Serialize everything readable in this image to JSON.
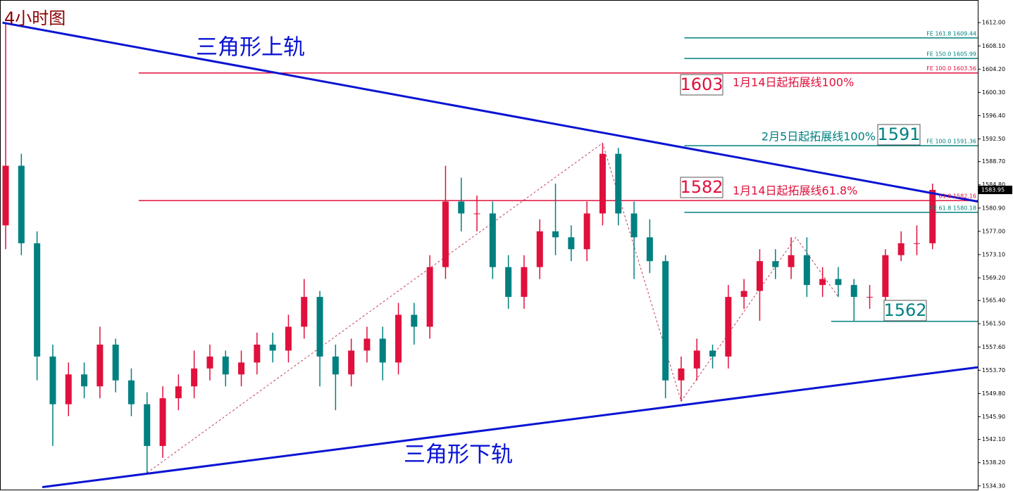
{
  "chart_data": {
    "type": "candlestick",
    "title": "4小时图",
    "open": [
      1578,
      1588,
      1575,
      1556,
      1548,
      1553,
      1551,
      1558,
      1552,
      1548,
      1541,
      1549,
      1551,
      1554,
      1556,
      1553,
      1555,
      1558,
      1557,
      1561,
      1566,
      1556,
      1553,
      1557,
      1559,
      1555,
      1563,
      1561,
      1571,
      1582,
      1580,
      1580,
      1571,
      1566,
      1571,
      1577,
      1576,
      1574,
      1580,
      1590,
      1580,
      1576,
      1572,
      1552,
      1554,
      1557,
      1556,
      1566,
      1567,
      1572,
      1571,
      1573,
      1568,
      1569,
      1568,
      1566,
      1566,
      1573,
      1575,
      1575
    ],
    "high": [
      1612,
      1590,
      1577,
      1558,
      1555,
      1555,
      1561,
      1559,
      1554,
      1550,
      1551,
      1553,
      1557,
      1558,
      1557,
      1557,
      1560,
      1560,
      1563,
      1569,
      1567,
      1558,
      1559,
      1561,
      1561,
      1565,
      1565,
      1573,
      1588,
      1586,
      1583,
      1582,
      1573,
      1573,
      1579,
      1585,
      1578,
      1582,
      1591.8,
      1591,
      1582,
      1579,
      1573,
      1556,
      1559,
      1558,
      1568,
      1569,
      1574,
      1574,
      1576,
      1576,
      1571,
      1571,
      1569,
      1568,
      1574,
      1577,
      1578,
      1585
    ],
    "low": [
      1574,
      1573,
      1552,
      1541,
      1546,
      1549,
      1549,
      1550,
      1546,
      1536.5,
      1539,
      1547,
      1549,
      1552,
      1551,
      1551,
      1553,
      1555,
      1555,
      1559,
      1551,
      1547,
      1551,
      1555,
      1552,
      1553,
      1558,
      1559,
      1569,
      1577,
      1577,
      1569,
      1564,
      1564,
      1569,
      1573,
      1572,
      1572,
      1578,
      1578,
      1569,
      1570,
      1549,
      1548.5,
      1552,
      1554,
      1554,
      1564,
      1562,
      1569,
      1569,
      1566,
      1566,
      1566,
      1562,
      1564,
      1564,
      1572,
      1573,
      1574
    ],
    "close": [
      1588,
      1575,
      1556,
      1548,
      1553,
      1551,
      1558,
      1552,
      1548,
      1541,
      1549,
      1551,
      1554,
      1556,
      1553,
      1555,
      1558,
      1557,
      1561,
      1566,
      1556,
      1553,
      1557,
      1559,
      1555,
      1563,
      1561,
      1571,
      1582,
      1580,
      1580,
      1571,
      1566,
      1571,
      1577,
      1576,
      1574,
      1580,
      1590,
      1580,
      1576,
      1572,
      1552,
      1554,
      1557,
      1556,
      1566,
      1567,
      1572,
      1571,
      1573,
      1568,
      1569,
      1568,
      1566,
      1566,
      1573,
      1575,
      1575,
      1583.95
    ],
    "up_color": "#e0103c",
    "down_color": "#008080",
    "xlim": [
      -0.36,
      61.88
    ],
    "ylim": [
      1533.8,
      1615.8
    ],
    "yticks": [
      {
        "value": 1612.0,
        "label": "1612.00"
      },
      {
        "value": 1608.1,
        "label": "1608.10"
      },
      {
        "value": 1604.2,
        "label": "1604.20"
      },
      {
        "value": 1600.3,
        "label": "1600.30"
      },
      {
        "value": 1596.4,
        "label": "1596.40"
      },
      {
        "value": 1592.5,
        "label": "1592.50"
      },
      {
        "value": 1588.7,
        "label": "1588.70"
      },
      {
        "value": 1584.8,
        "label": "1584.80"
      },
      {
        "value": 1580.9,
        "label": "1580.90"
      },
      {
        "value": 1577.0,
        "label": "1577.00"
      },
      {
        "value": 1573.1,
        "label": "1573.10"
      },
      {
        "value": 1569.2,
        "label": "1569.20"
      },
      {
        "value": 1565.4,
        "label": "1565.40"
      },
      {
        "value": 1561.5,
        "label": "1561.50"
      },
      {
        "value": 1557.6,
        "label": "1557.60"
      },
      {
        "value": 1553.7,
        "label": "1553.70"
      },
      {
        "value": 1549.8,
        "label": "1549.80"
      },
      {
        "value": 1545.9,
        "label": "1545.90"
      },
      {
        "value": 1542.1,
        "label": "1542.10"
      },
      {
        "value": 1538.2,
        "label": "1538.20"
      },
      {
        "value": 1534.3,
        "label": "1534.30"
      }
    ],
    "current_price": {
      "value": 1583.95,
      "label": "1583.95"
    },
    "trendlines": [
      {
        "from": [
          -0.2,
          1612
        ],
        "to": [
          61.88,
          1582.0
        ],
        "color": "#0a14d2"
      },
      {
        "from": [
          2.33,
          1534.1
        ],
        "to": [
          61.88,
          1554.2
        ],
        "color": "#0a14d2"
      }
    ],
    "levels": [
      {
        "value": 1609.44,
        "start": 43.2,
        "color": "#008080",
        "label": "FE 161.8 1609.44"
      },
      {
        "value": 1605.99,
        "start": 43.2,
        "color": "#008080",
        "label": "FE 150.0 1605.99"
      },
      {
        "value": 1603.56,
        "start": 8.47,
        "color": "#e0103c",
        "label": "FE 100.0 1603.56"
      },
      {
        "value": 1591.36,
        "start": 43.2,
        "color": "#008080",
        "label": "FE 100.0 1591.36"
      },
      {
        "value": 1582.16,
        "start": 8.47,
        "color": "#e0103c",
        "label": "61.8 1582.16"
      },
      {
        "value": 1580.18,
        "start": 43.2,
        "color": "#008080",
        "label": "FE 61.8 1580.18"
      },
      {
        "value": 1561.9,
        "start": 52.55,
        "color": "#008080"
      }
    ],
    "zigzag": {
      "x": [
        9,
        38,
        43,
        50.3,
        53
      ],
      "values": [
        1536.5,
        1591.8,
        1548.5,
        1576,
        1566
      ]
    },
    "annotations": {
      "upper": "三角形上轨",
      "lower": "三角形下轨",
      "box1603": "1603",
      "text1603": "1月14日起拓展线100%",
      "box1591": "1591",
      "text1591": "2月5日起拓展线100%",
      "box1582": "1582",
      "text1582": "1月14日起拓展线61.8%",
      "box1562": "1562"
    }
  }
}
